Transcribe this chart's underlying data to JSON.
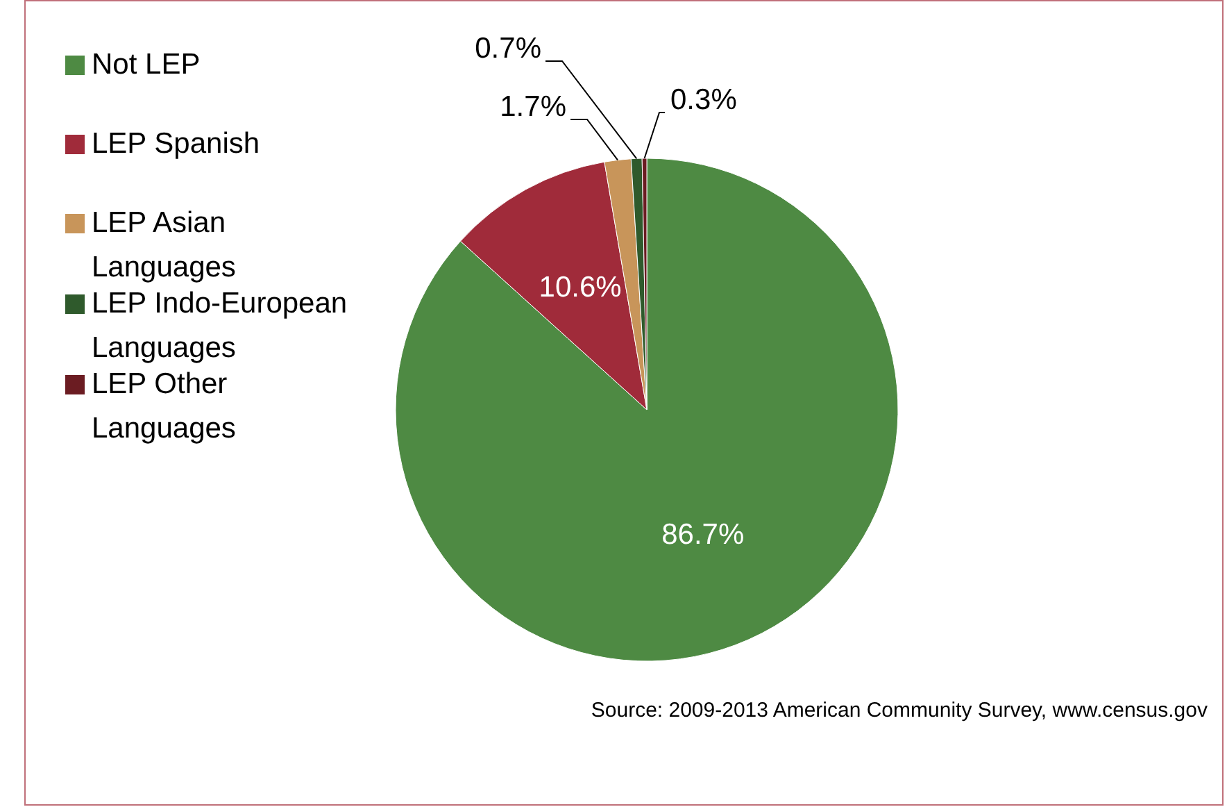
{
  "chart_data": {
    "type": "pie",
    "categories": [
      "Not LEP",
      "LEP Spanish",
      "LEP Asian Languages",
      "LEP Indo-European Languages",
      "LEP Other Languages"
    ],
    "values": [
      86.7,
      10.6,
      1.7,
      0.7,
      0.3
    ],
    "colors": [
      "#4e8a43",
      "#a02b3a",
      "#c8955a",
      "#2f5a2c",
      "#6b1c22"
    ],
    "value_labels": [
      "86.7%",
      "10.6%",
      "1.7%",
      "0.7%",
      "0.3%"
    ],
    "legend": "top left",
    "annotations": [
      "Source: 2009-2013 American Community Survey, www.census.gov"
    ]
  }
}
